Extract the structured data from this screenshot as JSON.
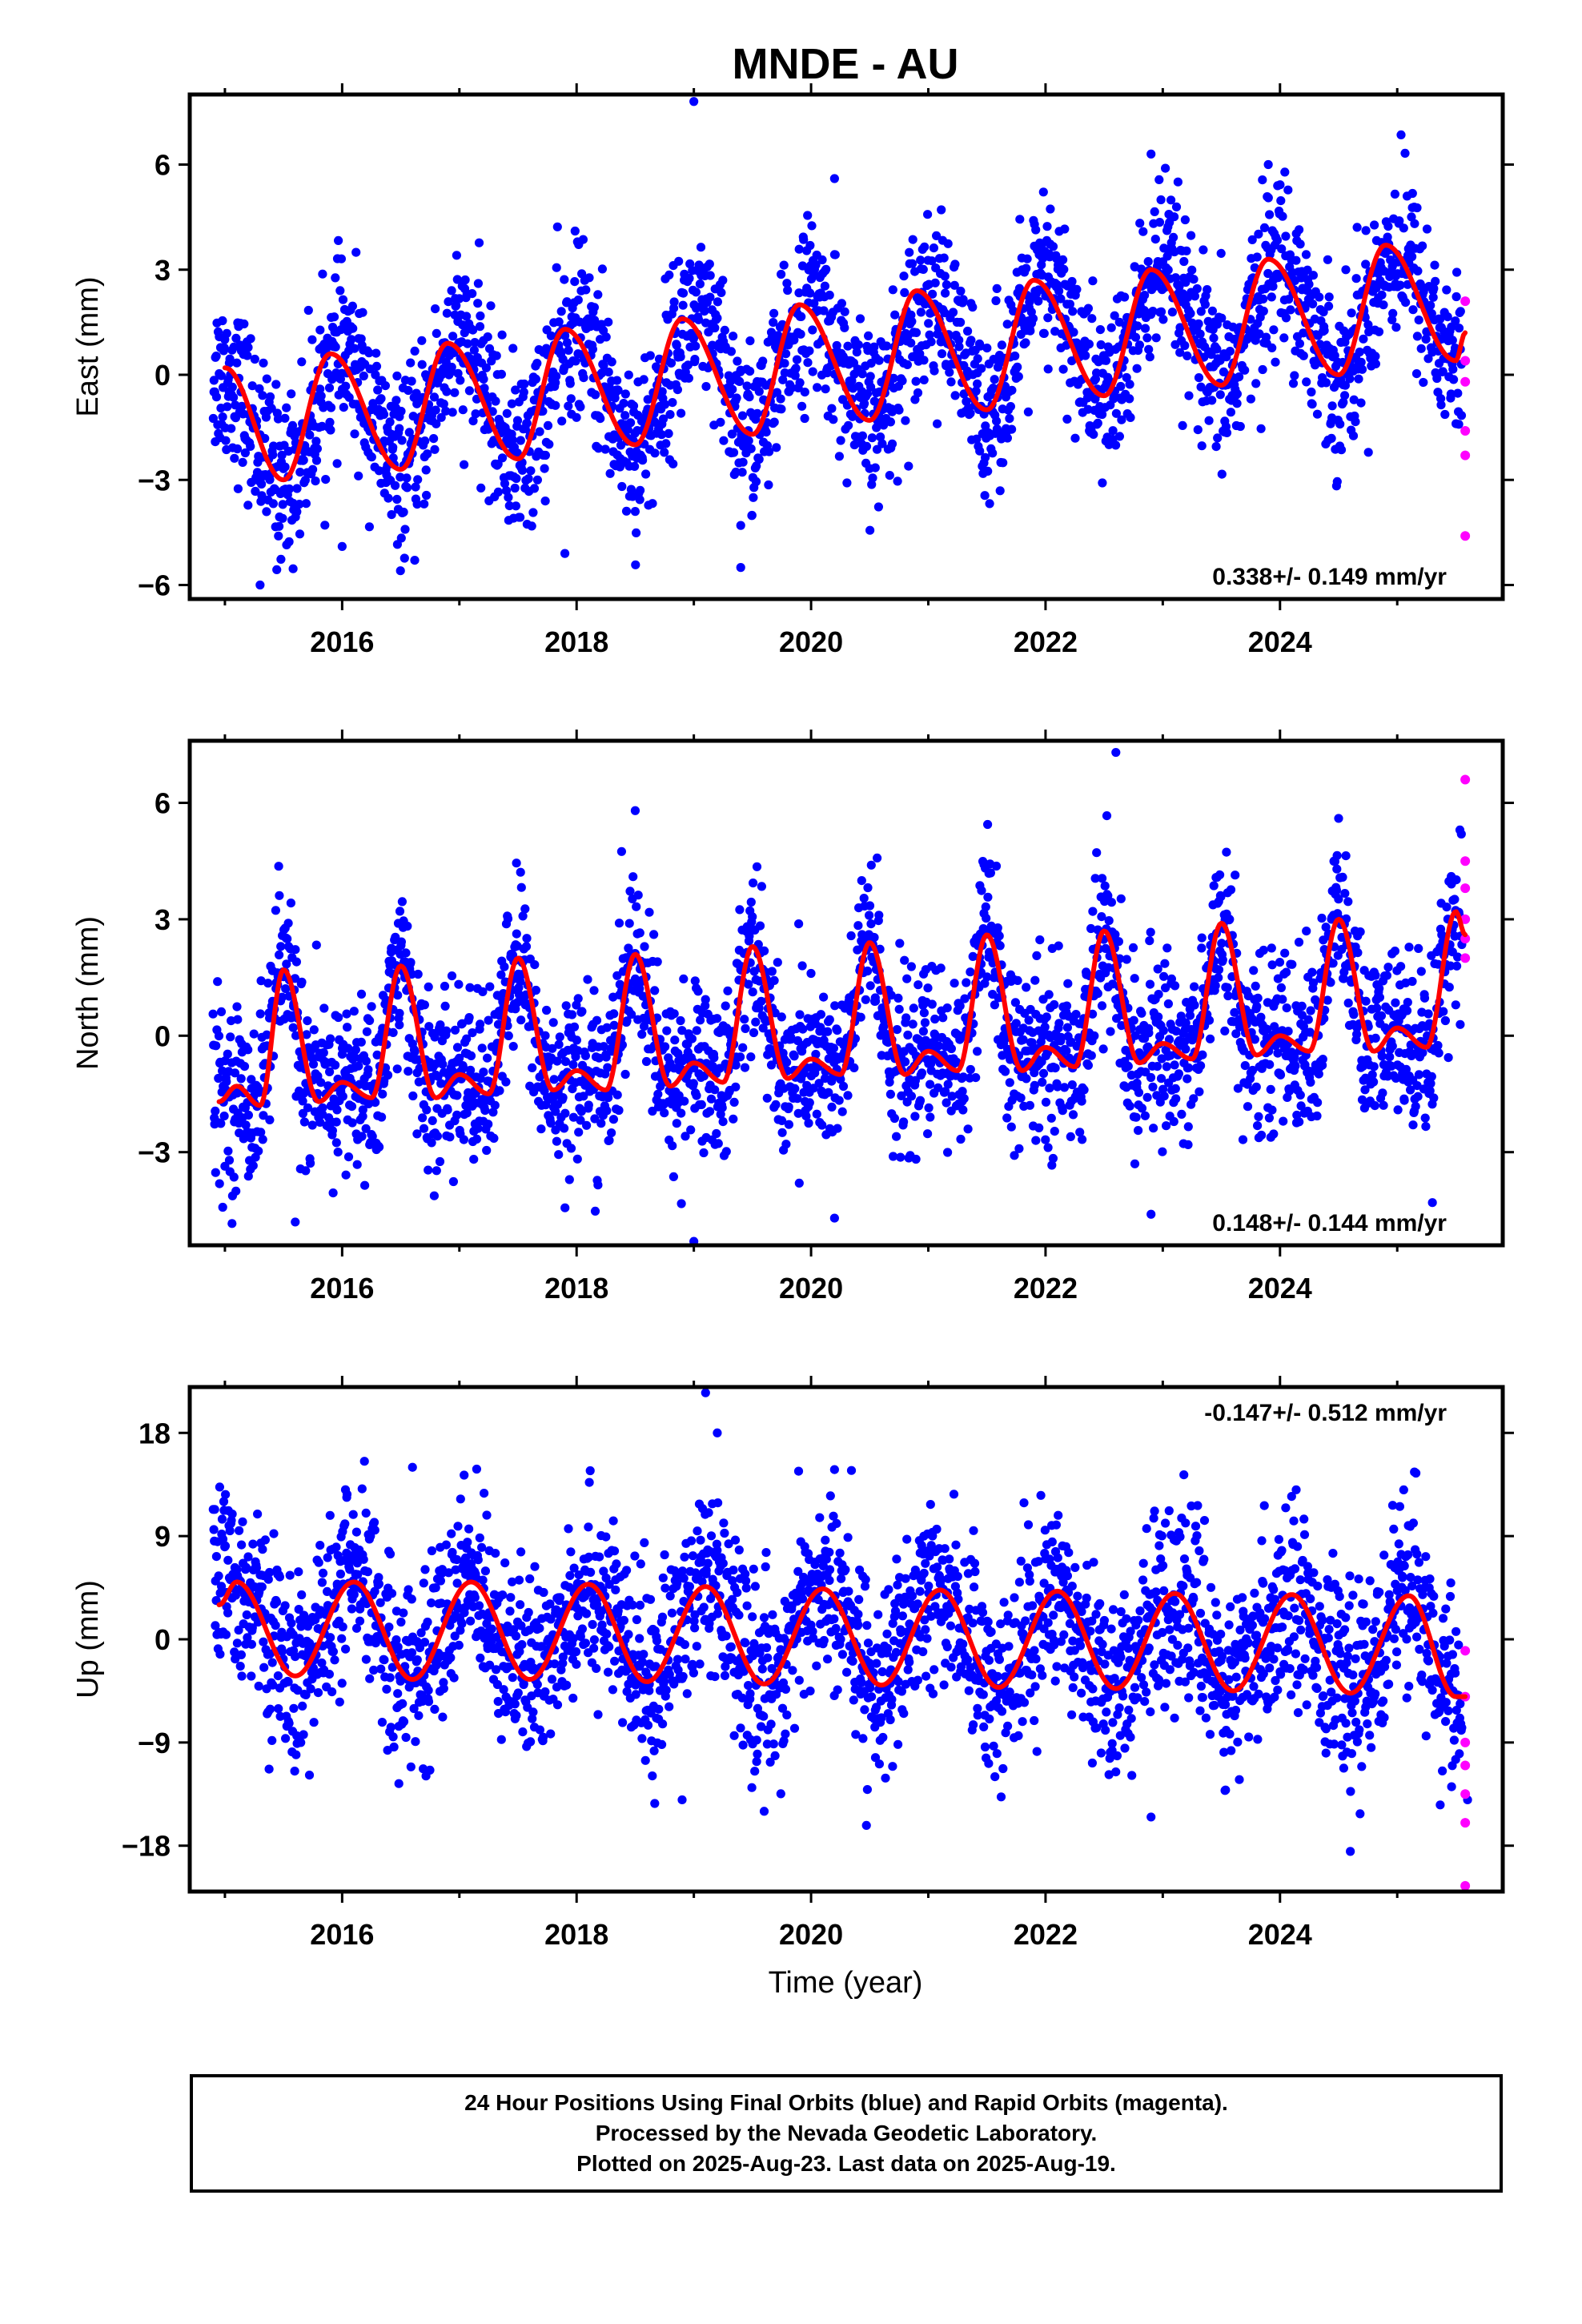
{
  "title": "MNDE - AU",
  "x_axis_label": "Time (year)",
  "footer": {
    "line1": "24 Hour Positions Using Final Orbits (blue) and Rapid Orbits (magenta).",
    "line2": "Processed by the Nevada Geodetic Laboratory.",
    "line3": "Plotted on 2025-Aug-23. Last data on 2025-Aug-19."
  },
  "colors": {
    "final_orbits": "#0000ff",
    "rapid_orbits": "#ff00ff",
    "model_fit": "#ff0000"
  },
  "chart_data": [
    {
      "type": "scatter",
      "ylabel": "East (mm)",
      "rate_label": "0.338+/- 0.149 mm/yr",
      "rate_label_position": "bottom-right",
      "xlim": [
        2014.7,
        2025.9
      ],
      "ylim": [
        -6.4,
        8.0
      ],
      "xticks": [
        2016,
        2018,
        2020,
        2022,
        2024
      ],
      "yticks": [
        -6,
        -3,
        0,
        3,
        6
      ],
      "series": [
        {
          "role": "final-orbit-daily-positions",
          "color": "#0000ff",
          "x_start": 2014.9,
          "x_end": 2025.55,
          "x": [
            2015.0,
            2015.5,
            2016.0,
            2016.5,
            2017.0,
            2017.5,
            2018.0,
            2018.5,
            2019.0,
            2019.5,
            2020.0,
            2020.5,
            2021.0,
            2021.5,
            2022.0,
            2022.5,
            2023.0,
            2023.5,
            2024.0,
            2024.5,
            2025.0,
            2025.5
          ],
          "y_center": [
            0.0,
            -3.0,
            0.6,
            -2.7,
            0.9,
            -2.3,
            1.3,
            -2.0,
            1.6,
            -1.6,
            2.0,
            -1.3,
            2.3,
            -0.9,
            2.6,
            -0.6,
            3.0,
            -0.3,
            3.3,
            0.0,
            3.6,
            0.4
          ],
          "spread": 1.2,
          "outliers": [
            [
              2019.0,
              7.8
            ],
            [
              2019.4,
              -5.5
            ],
            [
              2017.9,
              -5.1
            ],
            [
              2018.5,
              -3.9
            ],
            [
              2019.4,
              -4.3
            ],
            [
              2020.2,
              5.6
            ],
            [
              2022.9,
              6.3
            ],
            [
              2023.9,
              6.0
            ],
            [
              2015.3,
              -6.0
            ],
            [
              2016.0,
              -4.9
            ]
          ]
        },
        {
          "role": "rapid-orbit-daily-positions",
          "color": "#ff00ff",
          "x": [
            2025.58,
            2025.58,
            2025.58,
            2025.58,
            2025.58,
            2025.58
          ],
          "y": [
            2.1,
            0.4,
            -0.2,
            -1.6,
            -2.3,
            -4.6
          ]
        },
        {
          "role": "seasonal-model-fit",
          "color": "#ff0000",
          "x": [
            2015.0,
            2015.5,
            2015.9,
            2016.5,
            2016.9,
            2017.5,
            2017.9,
            2018.5,
            2018.9,
            2019.5,
            2019.9,
            2020.5,
            2020.9,
            2021.5,
            2021.9,
            2022.5,
            2022.9,
            2023.5,
            2023.9,
            2024.5,
            2024.9,
            2025.5,
            2025.58
          ],
          "y": [
            0.2,
            -3.0,
            0.6,
            -2.7,
            0.9,
            -2.4,
            1.3,
            -2.0,
            1.6,
            -1.7,
            2.0,
            -1.3,
            2.4,
            -1.0,
            2.7,
            -0.6,
            3.0,
            -0.3,
            3.3,
            0.0,
            3.7,
            0.4,
            1.2
          ]
        }
      ]
    },
    {
      "type": "scatter",
      "ylabel": "North (mm)",
      "rate_label": "0.148+/- 0.144 mm/yr",
      "rate_label_position": "bottom-right",
      "xlim": [
        2014.7,
        2025.9
      ],
      "ylim": [
        -5.4,
        7.6
      ],
      "xticks": [
        2016,
        2018,
        2020,
        2022,
        2024
      ],
      "yticks": [
        -3,
        0,
        3,
        6
      ],
      "series": [
        {
          "role": "final-orbit-daily-positions",
          "color": "#0000ff",
          "x_start": 2014.9,
          "x_end": 2025.55,
          "x": [
            2015.0,
            2015.25,
            2015.5,
            2015.75,
            2016.0,
            2016.25,
            2016.5,
            2016.75,
            2017.0,
            2017.25,
            2017.5,
            2017.75,
            2018.0,
            2018.25,
            2018.5,
            2018.75,
            2019.0,
            2019.25,
            2019.5,
            2019.75,
            2020.0,
            2020.25,
            2020.5,
            2020.75,
            2021.0,
            2021.25,
            2021.5,
            2021.75,
            2022.0,
            2022.25,
            2022.5,
            2022.75,
            2023.0,
            2023.25,
            2023.5,
            2023.75,
            2024.0,
            2024.25,
            2024.5,
            2024.75,
            2025.0,
            2025.25,
            2025.5
          ],
          "y_center": [
            -1.5,
            -1.7,
            1.7,
            -1.6,
            -1.2,
            -1.5,
            1.8,
            -1.5,
            -1.0,
            -1.3,
            2.0,
            -1.3,
            -0.9,
            -1.3,
            2.1,
            -1.2,
            -0.7,
            -1.1,
            2.3,
            -1.0,
            -0.6,
            -0.9,
            2.4,
            -0.9,
            -0.4,
            -0.8,
            2.6,
            -0.8,
            -0.3,
            -0.7,
            2.7,
            -0.6,
            -0.2,
            -0.5,
            2.9,
            -0.4,
            0.0,
            -0.4,
            3.0,
            -0.3,
            0.1,
            -0.3,
            3.2
          ],
          "spread": 1.1,
          "outliers": [
            [
              2022.6,
              7.3
            ],
            [
              2018.5,
              5.8
            ],
            [
              2019.0,
              -5.3
            ],
            [
              2015.6,
              -4.8
            ],
            [
              2020.2,
              -4.7
            ],
            [
              2022.9,
              -4.6
            ],
            [
              2025.3,
              -4.3
            ],
            [
              2024.5,
              5.6
            ]
          ]
        },
        {
          "role": "rapid-orbit-daily-positions",
          "color": "#ff00ff",
          "x": [
            2025.58,
            2025.58,
            2025.58,
            2025.58,
            2025.58,
            2025.58
          ],
          "y": [
            6.6,
            4.5,
            3.8,
            3.0,
            2.5,
            2.0
          ]
        },
        {
          "role": "seasonal-model-fit",
          "color": "#ff0000",
          "x": [
            2014.95,
            2015.1,
            2015.3,
            2015.5,
            2015.8,
            2016.0,
            2016.25,
            2016.5,
            2016.8,
            2017.0,
            2017.25,
            2017.5,
            2017.8,
            2018.0,
            2018.25,
            2018.5,
            2018.8,
            2019.0,
            2019.25,
            2019.5,
            2019.8,
            2020.0,
            2020.25,
            2020.5,
            2020.8,
            2021.0,
            2021.25,
            2021.5,
            2021.8,
            2022.0,
            2022.25,
            2022.5,
            2022.8,
            2023.0,
            2023.25,
            2023.5,
            2023.8,
            2024.0,
            2024.25,
            2024.5,
            2024.8,
            2025.0,
            2025.25,
            2025.5,
            2025.58
          ],
          "y": [
            -1.7,
            -1.3,
            -1.8,
            1.7,
            -1.7,
            -1.2,
            -1.6,
            1.8,
            -1.6,
            -1.0,
            -1.5,
            2.0,
            -1.4,
            -0.9,
            -1.4,
            2.1,
            -1.3,
            -0.7,
            -1.2,
            2.3,
            -1.1,
            -0.6,
            -1.0,
            2.4,
            -1.0,
            -0.4,
            -0.9,
            2.6,
            -0.9,
            -0.3,
            -0.8,
            2.7,
            -0.7,
            -0.2,
            -0.6,
            2.9,
            -0.5,
            0.0,
            -0.4,
            3.0,
            -0.4,
            0.2,
            -0.3,
            3.2,
            2.6
          ]
        }
      ]
    },
    {
      "type": "scatter",
      "ylabel": "Up (mm)",
      "rate_label": "-0.147+/- 0.512 mm/yr",
      "rate_label_position": "top-right",
      "xlim": [
        2014.7,
        2025.9
      ],
      "ylim": [
        -22,
        22
      ],
      "xticks": [
        2016,
        2018,
        2020,
        2022,
        2024
      ],
      "yticks": [
        -18,
        -9,
        0,
        9,
        18
      ],
      "series": [
        {
          "role": "final-orbit-daily-positions",
          "color": "#0000ff",
          "x_start": 2014.9,
          "x_end": 2025.55,
          "x": [
            2015.1,
            2015.6,
            2016.1,
            2016.6,
            2017.1,
            2017.6,
            2018.1,
            2018.6,
            2019.1,
            2019.6,
            2020.1,
            2020.6,
            2021.1,
            2021.6,
            2022.1,
            2022.6,
            2023.1,
            2023.6,
            2024.1,
            2024.6,
            2025.1,
            2025.5
          ],
          "y_center": [
            5.0,
            -3.0,
            5.0,
            -3.3,
            5.0,
            -3.3,
            4.8,
            -3.5,
            4.6,
            -3.7,
            4.4,
            -3.9,
            4.3,
            -4.1,
            4.2,
            -4.2,
            4.0,
            -4.4,
            3.9,
            -4.6,
            3.8,
            -5.0
          ],
          "spread": 4.0,
          "outliers": [
            [
              2019.1,
              21.5
            ],
            [
              2019.2,
              18.0
            ],
            [
              2019.6,
              -15.0
            ],
            [
              2022.9,
              -15.5
            ],
            [
              2024.6,
              -18.5
            ],
            [
              2018.9,
              -14.0
            ],
            [
              2025.6,
              -14.0
            ],
            [
              2016.6,
              15.0
            ],
            [
              2020.2,
              14.8
            ]
          ]
        },
        {
          "role": "rapid-orbit-daily-positions",
          "color": "#ff00ff",
          "x": [
            2025.58,
            2025.58,
            2025.58,
            2025.58,
            2025.58,
            2025.58,
            2025.58
          ],
          "y": [
            -1.0,
            -5.0,
            -9.0,
            -11.0,
            -13.5,
            -16.0,
            -21.5
          ]
        },
        {
          "role": "seasonal-model-fit",
          "color": "#ff0000",
          "x": [
            2014.95,
            2015.1,
            2015.6,
            2016.1,
            2016.6,
            2017.1,
            2017.6,
            2018.1,
            2018.6,
            2019.1,
            2019.6,
            2020.1,
            2020.6,
            2021.1,
            2021.6,
            2022.1,
            2022.6,
            2023.1,
            2023.6,
            2024.1,
            2024.6,
            2025.1,
            2025.5,
            2025.58
          ],
          "y": [
            3.0,
            5.0,
            -3.2,
            5.0,
            -3.5,
            5.0,
            -3.5,
            4.8,
            -3.7,
            4.6,
            -3.9,
            4.4,
            -4.0,
            4.3,
            -4.2,
            4.2,
            -4.3,
            4.0,
            -4.5,
            3.9,
            -4.7,
            3.8,
            -5.0,
            -5.0
          ]
        }
      ]
    }
  ]
}
